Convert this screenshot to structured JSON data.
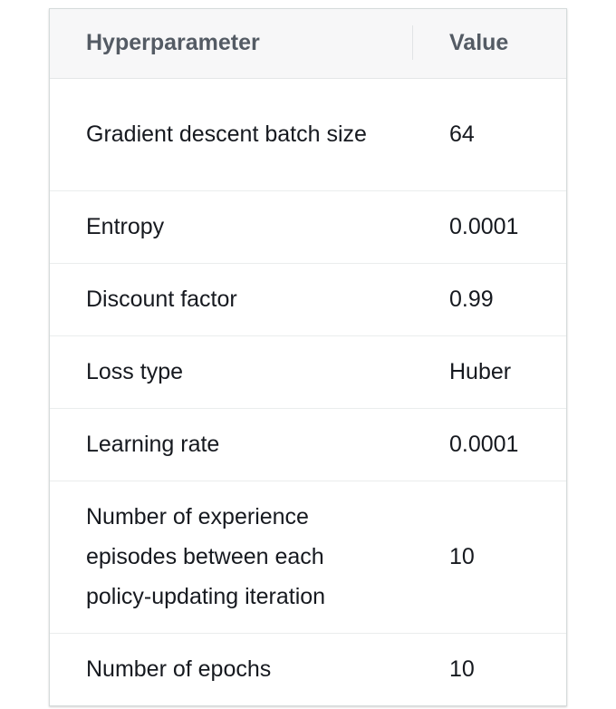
{
  "table": {
    "headers": {
      "parameter": "Hyperparameter",
      "value": "Value"
    },
    "rows": [
      {
        "parameter": "Gradient descent batch size",
        "value": "64"
      },
      {
        "parameter": "Entropy",
        "value": "0.0001"
      },
      {
        "parameter": "Discount factor",
        "value": "0.99"
      },
      {
        "parameter": "Loss type",
        "value": "Huber"
      },
      {
        "parameter": "Learning rate",
        "value": "0.0001"
      },
      {
        "parameter": "Number of experience episodes between each policy-updating iteration",
        "value": "10"
      },
      {
        "parameter": "Number of epochs",
        "value": "10"
      }
    ]
  }
}
